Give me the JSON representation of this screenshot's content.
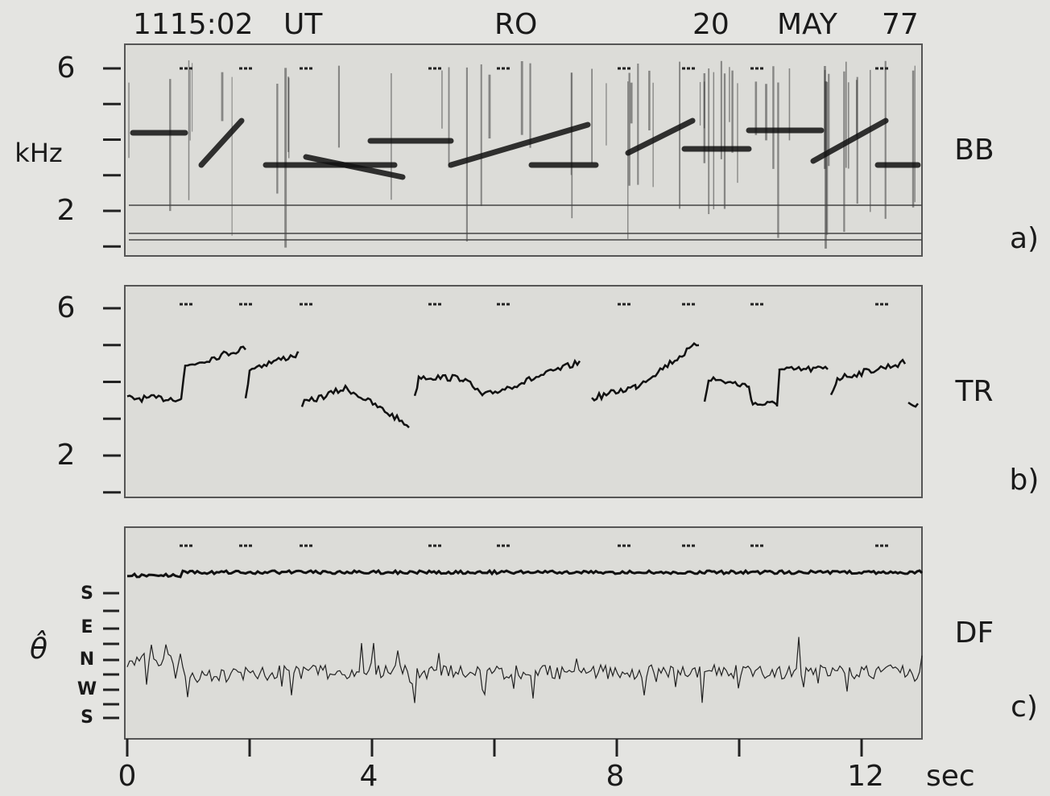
{
  "header": {
    "time": "1115:02",
    "ut": "UT",
    "station": "RO",
    "day": "20",
    "month": "MAY",
    "year": "77"
  },
  "panels": [
    {
      "name": "BB",
      "label": "a)",
      "y_axis_label": "kHz",
      "ticks": [
        "6",
        "2"
      ]
    },
    {
      "name": "TR",
      "label": "b)",
      "ticks": [
        "6",
        "2"
      ]
    },
    {
      "name": "DF",
      "label": "c)",
      "y_axis_label": "θ̂",
      "ticks": [
        "S",
        "E",
        "N",
        "W",
        "S"
      ]
    }
  ],
  "x_axis": {
    "ticks": [
      "0",
      "4",
      "8",
      "12"
    ],
    "unit": "sec"
  }
}
